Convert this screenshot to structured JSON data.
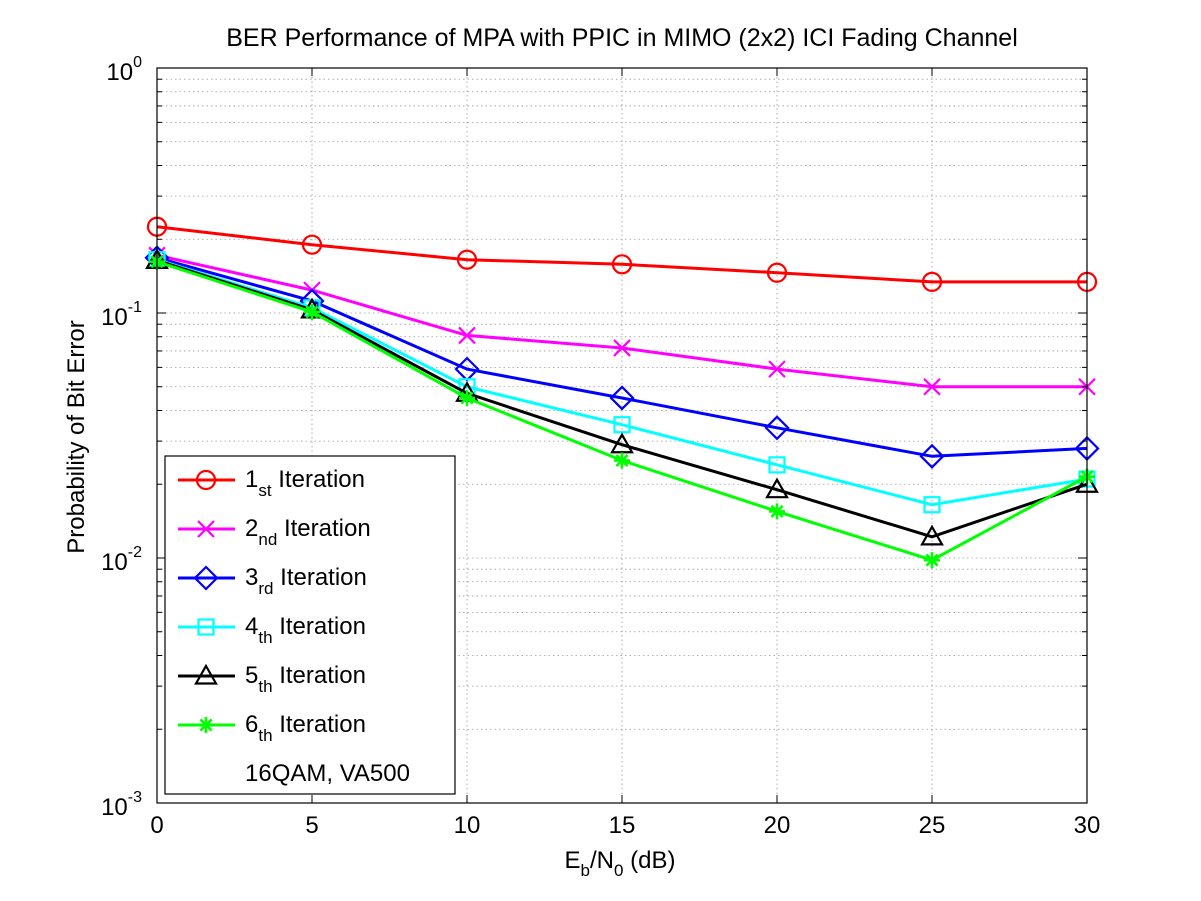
{
  "chart_data": {
    "type": "line",
    "title": "BER Performance of MPA with PPIC in MIMO (2x2) ICI Fading Channel",
    "xlabel": {
      "base": "E",
      "sub1": "b",
      "mid": "/N",
      "sub2": "0",
      "tail": " (dB)"
    },
    "ylabel": "Probability of Bit Error",
    "xlim": [
      0,
      30
    ],
    "ylim": [
      0.001,
      1
    ],
    "yscale": "log",
    "grid": true,
    "legend_position": "bottom-left",
    "x_ticks": [
      "0",
      "5",
      "10",
      "15",
      "20",
      "25",
      "30"
    ],
    "y_ticks": [
      {
        "base": "10",
        "exp": "0",
        "value": 1
      },
      {
        "base": "10",
        "exp": "-1",
        "value": 0.1
      },
      {
        "base": "10",
        "exp": "-2",
        "value": 0.01
      },
      {
        "base": "10",
        "exp": "-3",
        "value": 0.001
      }
    ],
    "x": [
      0,
      5,
      10,
      15,
      20,
      25,
      30
    ],
    "series": [
      {
        "name": "1st Iteration",
        "label_main": "1",
        "label_sub": "st",
        "label_tail": " Iteration",
        "color": "#ff0000",
        "marker": "circle",
        "values": [
          0.225,
          0.19,
          0.165,
          0.158,
          0.146,
          0.134,
          0.134
        ]
      },
      {
        "name": "2nd Iteration",
        "label_main": "2",
        "label_sub": "nd",
        "label_tail": " Iteration",
        "color": "#ff00ff",
        "marker": "x",
        "values": [
          0.172,
          0.124,
          0.081,
          0.072,
          0.059,
          0.05,
          0.05
        ]
      },
      {
        "name": "3rd Iteration",
        "label_main": "3",
        "label_sub": "rd",
        "label_tail": " Iteration",
        "color": "#0000ff",
        "marker": "diamond",
        "values": [
          0.168,
          0.112,
          0.059,
          0.045,
          0.034,
          0.026,
          0.028
        ]
      },
      {
        "name": "4th Iteration",
        "label_main": "4",
        "label_sub": "th",
        "label_tail": " Iteration",
        "color": "#00ffff",
        "marker": "square",
        "values": [
          0.165,
          0.105,
          0.05,
          0.035,
          0.024,
          0.0165,
          0.021
        ]
      },
      {
        "name": "5th Iteration",
        "label_main": "5",
        "label_sub": "th",
        "label_tail": " Iteration",
        "color": "#000000",
        "marker": "triangle",
        "values": [
          0.164,
          0.103,
          0.047,
          0.029,
          0.019,
          0.0122,
          0.02
        ]
      },
      {
        "name": "6th Iteration",
        "label_main": "6",
        "label_sub": "th",
        "label_tail": " Iteration",
        "color": "#00ff00",
        "marker": "asterisk",
        "values": [
          0.162,
          0.101,
          0.045,
          0.025,
          0.0155,
          0.0098,
          0.0215
        ]
      }
    ],
    "annotation": "16QAM, VA500"
  }
}
